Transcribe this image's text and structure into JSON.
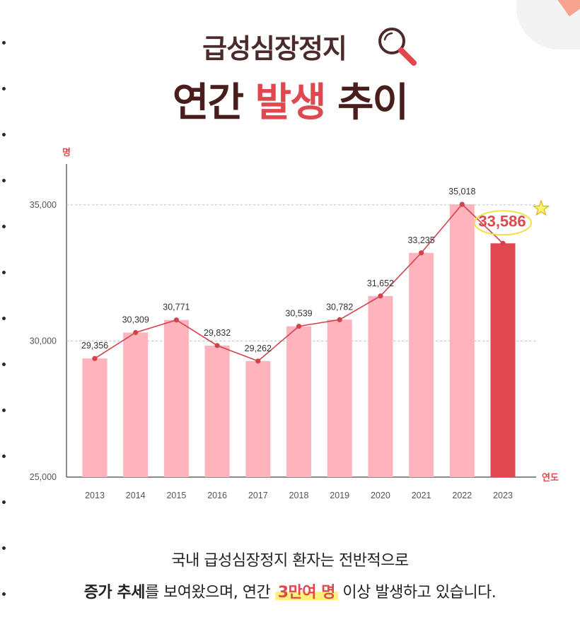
{
  "header": {
    "title_small": "급성심장정지",
    "title_big_prefix": "연간",
    "title_big_accent": "발생",
    "title_big_suffix": "추이"
  },
  "colors": {
    "accent": "#e0484f",
    "bar": "#ffb3bd",
    "bar_highlight": "#e0484f",
    "line": "#d2424a",
    "title_dark": "#4a1d1d",
    "highlight_marker": "#fff27a"
  },
  "chart_data": {
    "type": "bar",
    "title": "급성심장정지 연간 발생 추이",
    "ylabel": "명",
    "xlabel": "연도",
    "categories": [
      "2013",
      "2014",
      "2015",
      "2016",
      "2017",
      "2018",
      "2019",
      "2020",
      "2021",
      "2022",
      "2023"
    ],
    "values": [
      29356,
      30309,
      30771,
      29832,
      29262,
      30539,
      30782,
      31652,
      33235,
      35018,
      33586
    ],
    "value_labels": [
      "29,356",
      "30,309",
      "30,771",
      "29,832",
      "29,262",
      "30,539",
      "30,782",
      "31,652",
      "33,235",
      "35,018",
      "33,586"
    ],
    "ylim": [
      25000,
      36500
    ],
    "yticks": [
      25000,
      30000,
      35000
    ],
    "ytick_labels": [
      "25,000",
      "30,000",
      "35,000"
    ],
    "grid": true,
    "overlay_line": true,
    "highlight_index": 10
  },
  "caption": {
    "line1": "국내 급성심장정지 환자는 전반적으로",
    "line2_bold": "증가 추세",
    "line2_mid": "를 보여왔으며, 연간 ",
    "line2_highlight": "3만여 명",
    "line2_end": " 이상 발생하고 있습니다."
  }
}
